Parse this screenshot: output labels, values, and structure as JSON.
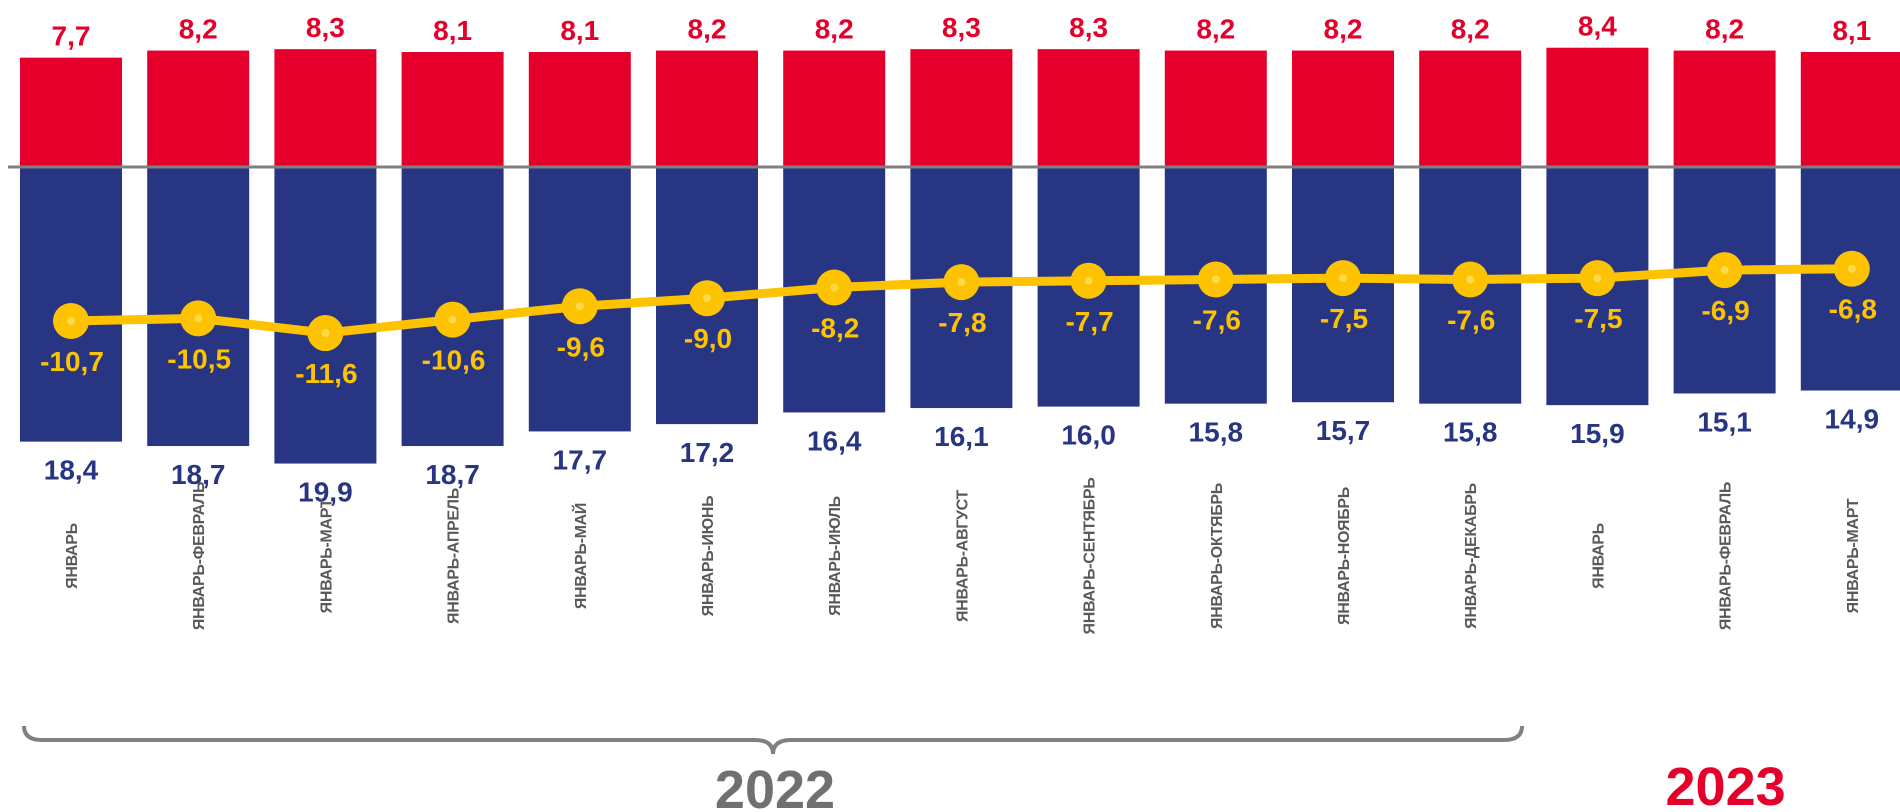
{
  "chart_data": {
    "type": "bar",
    "categories": [
      "ЯНВАРЬ",
      "ЯНВАРЬ-ФЕВРАЛЬ",
      "ЯНВАРЬ-МАРТ",
      "ЯНВАРЬ-АПРЕЛЬ",
      "ЯНВАРЬ-МАЙ",
      "ЯНВАРЬ-ИЮНЬ",
      "ЯНВАРЬ-ИЮЛЬ",
      "ЯНВАРЬ-АВГУСТ",
      "ЯНВАРЬ-СЕНТЯБРЬ",
      "ЯНВАРЬ-ОКТЯБРЬ",
      "ЯНВАРЬ-НОЯБРЬ",
      "ЯНВАРЬ-ДЕКАБРЬ",
      "ЯНВАРЬ",
      "ЯНВАРЬ-ФЕВРАЛЬ",
      "ЯНВАРЬ-МАРТ"
    ],
    "series": [
      {
        "type": "bar",
        "direction": "up",
        "color": "#e4002b",
        "values": [
          7.7,
          8.2,
          8.3,
          8.1,
          8.1,
          8.2,
          8.2,
          8.3,
          8.3,
          8.2,
          8.2,
          8.2,
          8.4,
          8.2,
          8.1
        ],
        "labels": [
          "7,7",
          "8,2",
          "8,3",
          "8,1",
          "8,1",
          "8,2",
          "8,2",
          "8,3",
          "8,3",
          "8,2",
          "8,2",
          "8,2",
          "8,4",
          "8,2",
          "8,1"
        ]
      },
      {
        "type": "bar",
        "direction": "down",
        "color": "#283583",
        "values": [
          18.4,
          18.7,
          19.9,
          18.7,
          17.7,
          17.2,
          16.4,
          16.1,
          16.0,
          15.8,
          15.7,
          15.8,
          15.9,
          15.1,
          14.9
        ],
        "labels": [
          "18,4",
          "18,7",
          "19,9",
          "18,7",
          "17,7",
          "17,2",
          "16,4",
          "16,1",
          "16,0",
          "15,8",
          "15,7",
          "15,8",
          "15,9",
          "15,1",
          "14,9"
        ]
      },
      {
        "type": "line",
        "color": "#fdc300",
        "values": [
          -10.7,
          -10.5,
          -11.6,
          -10.6,
          -9.6,
          -9.0,
          -8.2,
          -7.8,
          -7.7,
          -7.6,
          -7.5,
          -7.6,
          -7.5,
          -6.9,
          -6.8
        ],
        "labels": [
          "-10,7",
          "-10,5",
          "-11,6",
          "-10,6",
          "-9,6",
          "-9,0",
          "-8,2",
          "-7,8",
          "-7,7",
          "-7,6",
          "-7,5",
          "-7,6",
          "-7,5",
          "-6,9",
          "-6,8"
        ]
      }
    ],
    "groups": [
      {
        "label": "2022",
        "count": 12,
        "color": "#707070"
      },
      {
        "label": "2023",
        "count": 3,
        "color": "#e4002b"
      }
    ],
    "zero_line_color": "#7f7f7f",
    "category_label_color": "#595959"
  }
}
